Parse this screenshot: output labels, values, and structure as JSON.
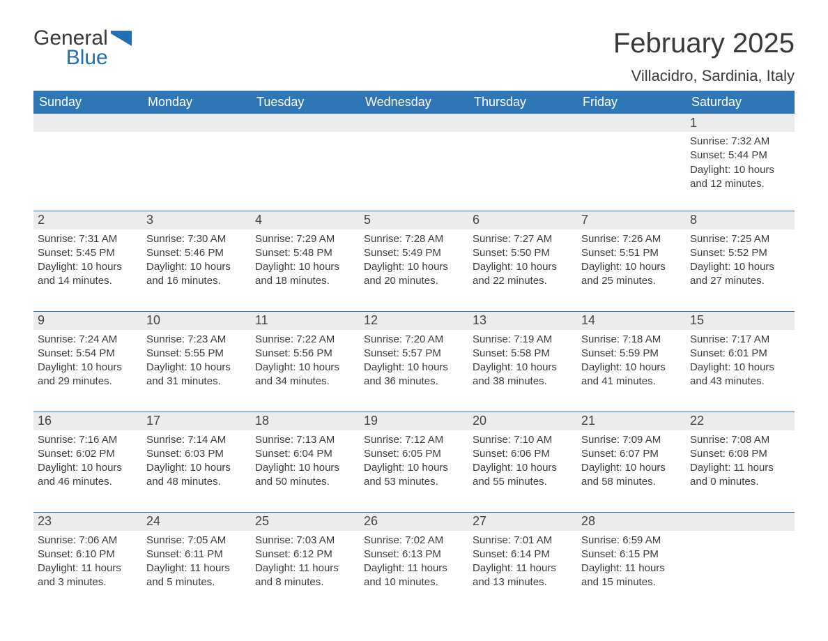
{
  "logo": {
    "word1": "General",
    "word2": "Blue",
    "shape_color": "#1f6fb2"
  },
  "title": "February 2025",
  "location": "Villacidro, Sardinia, Italy",
  "colors": {
    "header_bg": "#2f76b6",
    "header_text": "#ffffff",
    "daynum_bg": "#ececec",
    "border": "#2f76b6",
    "body_text": "#3d3d3d",
    "page_bg": "#ffffff"
  },
  "weekdays": [
    "Sunday",
    "Monday",
    "Tuesday",
    "Wednesday",
    "Thursday",
    "Friday",
    "Saturday"
  ],
  "weeks": [
    {
      "nums": [
        "",
        "",
        "",
        "",
        "",
        "",
        "1"
      ],
      "cells": [
        "",
        "",
        "",
        "",
        "",
        "",
        "Sunrise: 7:32 AM\nSunset: 5:44 PM\nDaylight: 10 hours and 12 minutes."
      ]
    },
    {
      "nums": [
        "2",
        "3",
        "4",
        "5",
        "6",
        "7",
        "8"
      ],
      "cells": [
        "Sunrise: 7:31 AM\nSunset: 5:45 PM\nDaylight: 10 hours and 14 minutes.",
        "Sunrise: 7:30 AM\nSunset: 5:46 PM\nDaylight: 10 hours and 16 minutes.",
        "Sunrise: 7:29 AM\nSunset: 5:48 PM\nDaylight: 10 hours and 18 minutes.",
        "Sunrise: 7:28 AM\nSunset: 5:49 PM\nDaylight: 10 hours and 20 minutes.",
        "Sunrise: 7:27 AM\nSunset: 5:50 PM\nDaylight: 10 hours and 22 minutes.",
        "Sunrise: 7:26 AM\nSunset: 5:51 PM\nDaylight: 10 hours and 25 minutes.",
        "Sunrise: 7:25 AM\nSunset: 5:52 PM\nDaylight: 10 hours and 27 minutes."
      ]
    },
    {
      "nums": [
        "9",
        "10",
        "11",
        "12",
        "13",
        "14",
        "15"
      ],
      "cells": [
        "Sunrise: 7:24 AM\nSunset: 5:54 PM\nDaylight: 10 hours and 29 minutes.",
        "Sunrise: 7:23 AM\nSunset: 5:55 PM\nDaylight: 10 hours and 31 minutes.",
        "Sunrise: 7:22 AM\nSunset: 5:56 PM\nDaylight: 10 hours and 34 minutes.",
        "Sunrise: 7:20 AM\nSunset: 5:57 PM\nDaylight: 10 hours and 36 minutes.",
        "Sunrise: 7:19 AM\nSunset: 5:58 PM\nDaylight: 10 hours and 38 minutes.",
        "Sunrise: 7:18 AM\nSunset: 5:59 PM\nDaylight: 10 hours and 41 minutes.",
        "Sunrise: 7:17 AM\nSunset: 6:01 PM\nDaylight: 10 hours and 43 minutes."
      ]
    },
    {
      "nums": [
        "16",
        "17",
        "18",
        "19",
        "20",
        "21",
        "22"
      ],
      "cells": [
        "Sunrise: 7:16 AM\nSunset: 6:02 PM\nDaylight: 10 hours and 46 minutes.",
        "Sunrise: 7:14 AM\nSunset: 6:03 PM\nDaylight: 10 hours and 48 minutes.",
        "Sunrise: 7:13 AM\nSunset: 6:04 PM\nDaylight: 10 hours and 50 minutes.",
        "Sunrise: 7:12 AM\nSunset: 6:05 PM\nDaylight: 10 hours and 53 minutes.",
        "Sunrise: 7:10 AM\nSunset: 6:06 PM\nDaylight: 10 hours and 55 minutes.",
        "Sunrise: 7:09 AM\nSunset: 6:07 PM\nDaylight: 10 hours and 58 minutes.",
        "Sunrise: 7:08 AM\nSunset: 6:08 PM\nDaylight: 11 hours and 0 minutes."
      ]
    },
    {
      "nums": [
        "23",
        "24",
        "25",
        "26",
        "27",
        "28",
        ""
      ],
      "cells": [
        "Sunrise: 7:06 AM\nSunset: 6:10 PM\nDaylight: 11 hours and 3 minutes.",
        "Sunrise: 7:05 AM\nSunset: 6:11 PM\nDaylight: 11 hours and 5 minutes.",
        "Sunrise: 7:03 AM\nSunset: 6:12 PM\nDaylight: 11 hours and 8 minutes.",
        "Sunrise: 7:02 AM\nSunset: 6:13 PM\nDaylight: 11 hours and 10 minutes.",
        "Sunrise: 7:01 AM\nSunset: 6:14 PM\nDaylight: 11 hours and 13 minutes.",
        "Sunrise: 6:59 AM\nSunset: 6:15 PM\nDaylight: 11 hours and 15 minutes.",
        ""
      ]
    }
  ]
}
